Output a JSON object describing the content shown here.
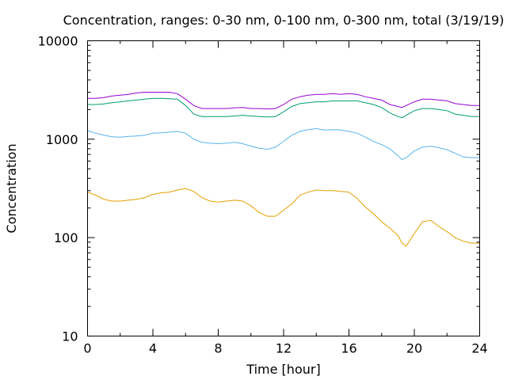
{
  "chart_data": {
    "type": "line",
    "title": "Concentration, ranges: 0-30 nm, 0-100 nm, 0-300 nm, total (3/19/19)",
    "xlabel": "Time [hour]",
    "ylabel": "Concentration",
    "xlim": [
      0,
      24
    ],
    "ylim": [
      10,
      10000
    ],
    "yscale": "log",
    "grid": false,
    "legend": "none",
    "x_ticks": [
      0,
      4,
      8,
      12,
      16,
      20,
      24
    ],
    "x_tick_labels": [
      "0",
      "4",
      "8",
      "12",
      "16",
      "20",
      "24"
    ],
    "y_ticks": [
      10,
      100,
      1000,
      10000
    ],
    "y_tick_labels": [
      "10",
      "100",
      "1000",
      "10000"
    ],
    "x": [
      0,
      0.5,
      1,
      1.5,
      2,
      2.5,
      3,
      3.5,
      4,
      4.5,
      5,
      5.5,
      6,
      6.5,
      7,
      7.5,
      8,
      8.5,
      9,
      9.5,
      10,
      10.5,
      11,
      11.5,
      12,
      12.5,
      13,
      13.5,
      14,
      14.5,
      15,
      15.5,
      16,
      16.5,
      17,
      17.5,
      18,
      18.5,
      19,
      19.25,
      19.5,
      20,
      20.5,
      21,
      21.5,
      22,
      22.5,
      23,
      23.5,
      24
    ],
    "series": [
      {
        "color": "#9400d3",
        "values": [
          2600,
          2600,
          2650,
          2750,
          2800,
          2850,
          2950,
          3000,
          3000,
          3000,
          3000,
          2900,
          2550,
          2200,
          2050,
          2050,
          2050,
          2050,
          2080,
          2100,
          2050,
          2050,
          2030,
          2050,
          2250,
          2550,
          2700,
          2800,
          2850,
          2850,
          2900,
          2850,
          2900,
          2850,
          2700,
          2600,
          2500,
          2250,
          2150,
          2100,
          2200,
          2400,
          2550,
          2550,
          2500,
          2450,
          2300,
          2250,
          2200,
          2200
        ]
      },
      {
        "color": "#009e73",
        "values": [
          2250,
          2250,
          2280,
          2350,
          2400,
          2450,
          2500,
          2550,
          2600,
          2600,
          2580,
          2550,
          2200,
          1800,
          1700,
          1700,
          1700,
          1700,
          1720,
          1750,
          1720,
          1700,
          1680,
          1700,
          1900,
          2150,
          2300,
          2350,
          2400,
          2400,
          2450,
          2450,
          2450,
          2450,
          2350,
          2250,
          2100,
          1850,
          1700,
          1650,
          1750,
          1950,
          2050,
          2050,
          2000,
          1950,
          1800,
          1750,
          1700,
          1700
        ]
      },
      {
        "color": "#56b4e9",
        "values": [
          1220,
          1150,
          1100,
          1060,
          1050,
          1070,
          1080,
          1100,
          1150,
          1160,
          1180,
          1200,
          1150,
          1000,
          930,
          910,
          900,
          910,
          930,
          900,
          850,
          810,
          790,
          830,
          950,
          1100,
          1200,
          1250,
          1280,
          1240,
          1250,
          1240,
          1200,
          1150,
          1050,
          950,
          880,
          800,
          680,
          620,
          650,
          760,
          830,
          850,
          820,
          780,
          720,
          660,
          650,
          650
        ]
      },
      {
        "color": "#e69f00",
        "values": [
          290,
          270,
          245,
          235,
          235,
          240,
          245,
          255,
          275,
          285,
          290,
          305,
          315,
          295,
          255,
          235,
          230,
          235,
          240,
          235,
          210,
          180,
          165,
          165,
          190,
          220,
          270,
          290,
          305,
          300,
          300,
          295,
          290,
          250,
          205,
          175,
          145,
          125,
          105,
          88,
          82,
          110,
          145,
          150,
          130,
          115,
          100,
          92,
          88,
          88
        ]
      }
    ]
  }
}
